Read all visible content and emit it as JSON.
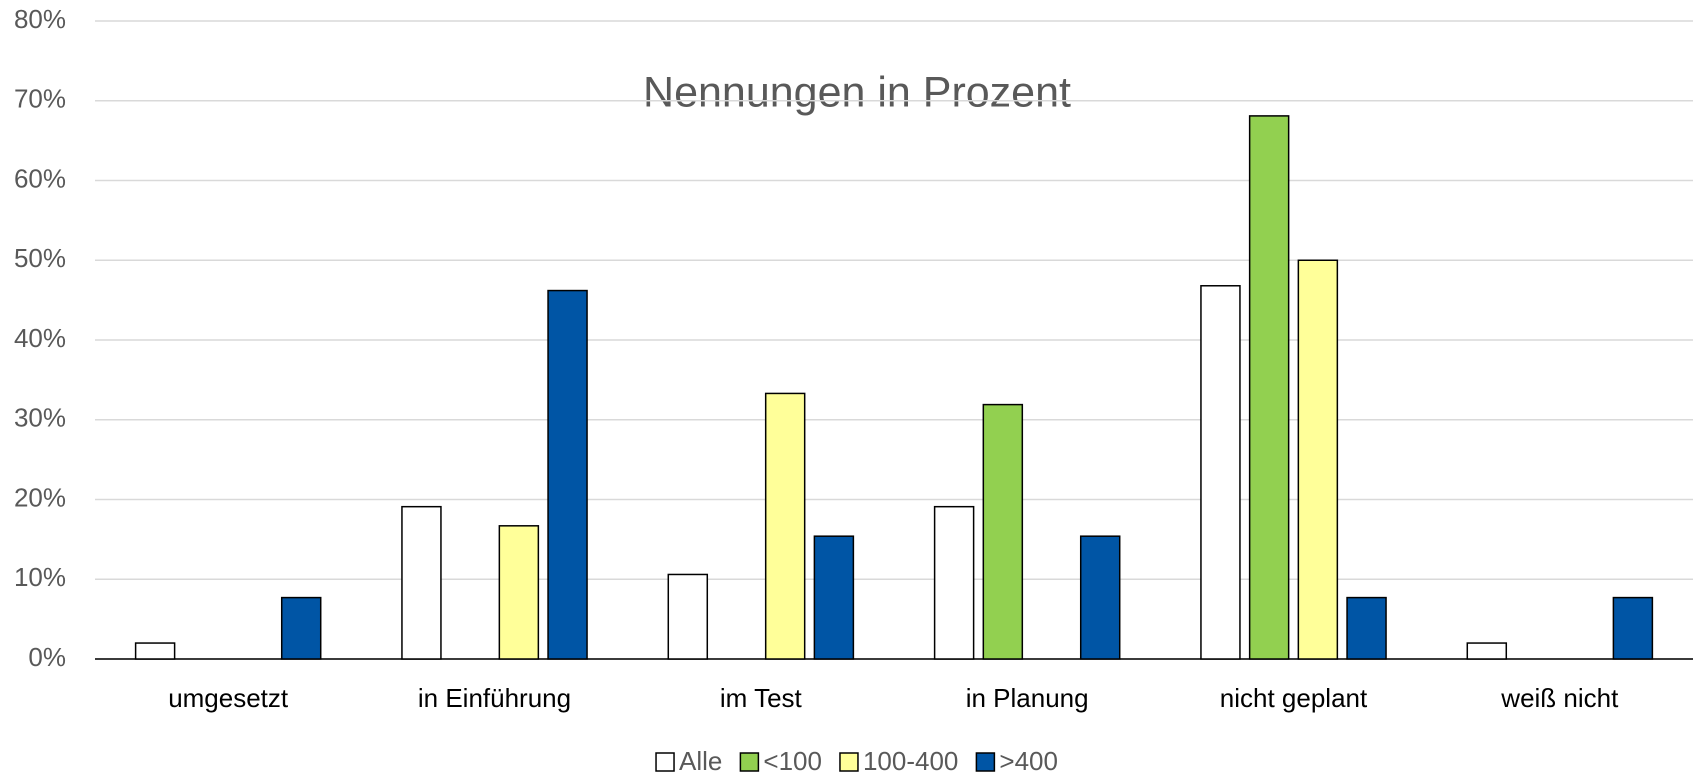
{
  "chart_data": {
    "type": "bar",
    "title": "Nennungen in Prozent",
    "categories": [
      "umgesetzt",
      "in Einführung",
      "im Test",
      "in Planung",
      "nicht geplant",
      "weiß nicht"
    ],
    "series": [
      {
        "name": "Alle",
        "color": "#ffffff",
        "values": [
          2,
          19.1,
          10.6,
          19.1,
          46.8,
          2
        ]
      },
      {
        "name": "<100",
        "color": "#92d050",
        "values": [
          0,
          0,
          0,
          31.9,
          68.1,
          0
        ]
      },
      {
        "name": "100-400",
        "color": "#ffff99",
        "values": [
          0,
          16.7,
          33.3,
          0,
          50,
          0
        ]
      },
      {
        "name": ">400",
        "color": "#0055a5",
        "values": [
          7.7,
          46.2,
          15.4,
          15.4,
          7.7,
          7.7
        ]
      }
    ],
    "ylim": [
      0,
      80
    ],
    "yticks": [
      {
        "value": 0,
        "label": "0%"
      },
      {
        "value": 10,
        "label": "10%"
      },
      {
        "value": 20,
        "label": "20%"
      },
      {
        "value": 30,
        "label": "30%"
      },
      {
        "value": 40,
        "label": "40%"
      },
      {
        "value": 50,
        "label": "50%"
      },
      {
        "value": 60,
        "label": "60%"
      },
      {
        "value": 70,
        "label": "70%"
      },
      {
        "value": 80,
        "label": "80%"
      }
    ],
    "grid": true,
    "legend": "bottom"
  }
}
